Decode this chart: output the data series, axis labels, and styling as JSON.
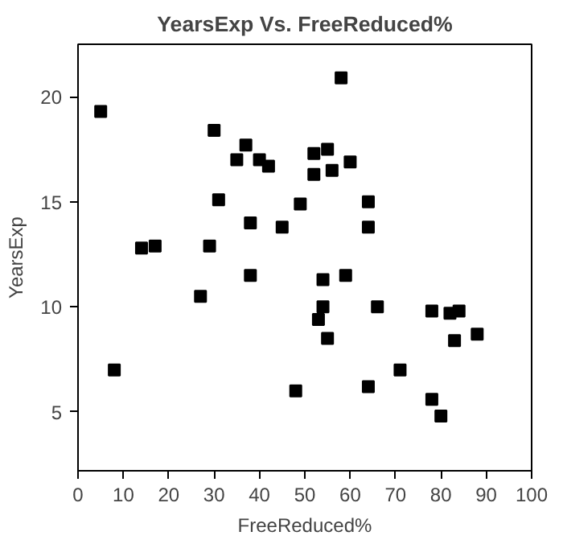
{
  "chart_data": {
    "type": "scatter",
    "title": "YearsExp Vs. FreeReduced%",
    "xlabel": "FreeReduced%",
    "ylabel": "YearsExp",
    "x": [
      5,
      8,
      14,
      17,
      27,
      29,
      30,
      31,
      35,
      37,
      38,
      38,
      40,
      42,
      45,
      48,
      49,
      52,
      52,
      53,
      54,
      54,
      55,
      55,
      56,
      58,
      59,
      60,
      64,
      64,
      64,
      66,
      71,
      78,
      78,
      80,
      82,
      83,
      84,
      88
    ],
    "series": [
      {
        "color": "#000000",
        "values": [
          19.3,
          7.0,
          12.8,
          12.9,
          10.5,
          12.9,
          18.4,
          15.1,
          17.0,
          17.7,
          14.0,
          11.5,
          17.0,
          16.7,
          13.8,
          6.0,
          14.9,
          17.3,
          16.3,
          9.4,
          11.3,
          10.0,
          17.5,
          8.5,
          16.5,
          20.9,
          11.5,
          16.9,
          15.0,
          13.8,
          6.2,
          10.0,
          7.0,
          9.8,
          5.6,
          4.8,
          9.7,
          8.4,
          9.8,
          8.7
        ]
      }
    ],
    "xlim": [
      0,
      100
    ],
    "ylim": [
      2.2,
      22.5
    ],
    "xticks": [
      0,
      10,
      20,
      30,
      40,
      50,
      60,
      70,
      80,
      90,
      100
    ],
    "yticks": [
      5,
      10,
      15,
      20
    ],
    "marker": "square",
    "grid": false
  }
}
